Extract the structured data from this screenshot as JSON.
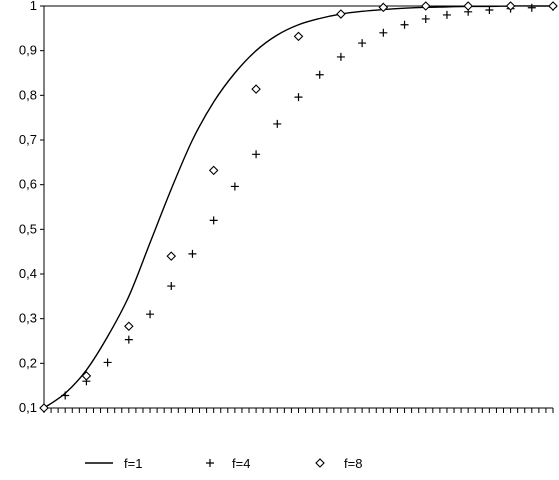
{
  "chart_data": {
    "type": "line",
    "title": "",
    "xlabel": "",
    "ylabel": "",
    "x": [
      0,
      1,
      2,
      3,
      4,
      5,
      6,
      7,
      8,
      9,
      10,
      11,
      12,
      13,
      14,
      15,
      16,
      17,
      18,
      19,
      20,
      21,
      22,
      23,
      24
    ],
    "xlim": [
      0,
      24
    ],
    "ylim": [
      0.1,
      1.0
    ],
    "yticks": [
      "0,1",
      "0,2",
      "0,3",
      "0,4",
      "0,5",
      "0,6",
      "0,7",
      "0,8",
      "0,9",
      "1"
    ],
    "ytick_values": [
      0.1,
      0.2,
      0.3,
      0.4,
      0.5,
      0.6,
      0.7,
      0.8,
      0.9,
      1.0
    ],
    "series": [
      {
        "name": "f=1",
        "marker": "line",
        "x": [
          0,
          1,
          2,
          3,
          4,
          5,
          6,
          7,
          8,
          9,
          10,
          11,
          12,
          13,
          14,
          15,
          16,
          17,
          18,
          19,
          20,
          21,
          22,
          23,
          24
        ],
        "values": [
          0.1,
          0.133,
          0.185,
          0.26,
          0.35,
          0.47,
          0.59,
          0.7,
          0.785,
          0.85,
          0.9,
          0.935,
          0.958,
          0.972,
          0.982,
          0.988,
          0.992,
          0.995,
          0.997,
          0.998,
          0.999,
          0.999,
          1.0,
          1.0,
          1.0
        ]
      },
      {
        "name": "f=4",
        "marker": "plus",
        "x": [
          0,
          1,
          2,
          3,
          4,
          5,
          6,
          7,
          8,
          9,
          10,
          11,
          12,
          13,
          14,
          15,
          16,
          17,
          18,
          19,
          20,
          21,
          22,
          23,
          24
        ],
        "values": [
          0.1,
          0.128,
          0.16,
          0.202,
          0.253,
          0.31,
          0.373,
          0.445,
          0.52,
          0.596,
          0.668,
          0.736,
          0.796,
          0.846,
          0.886,
          0.917,
          0.94,
          0.958,
          0.971,
          0.98,
          0.987,
          0.991,
          0.994,
          0.996,
          0.998
        ]
      },
      {
        "name": "f=8",
        "marker": "diamond",
        "x": [
          0,
          2,
          4,
          6,
          8,
          10,
          12,
          14,
          16,
          18,
          20,
          22,
          24
        ],
        "values": [
          0.1,
          0.172,
          0.283,
          0.44,
          0.632,
          0.814,
          0.932,
          0.982,
          0.997,
          1.0,
          1.0,
          1.0,
          1.0
        ]
      }
    ],
    "grid": false,
    "legend": "bottom"
  }
}
